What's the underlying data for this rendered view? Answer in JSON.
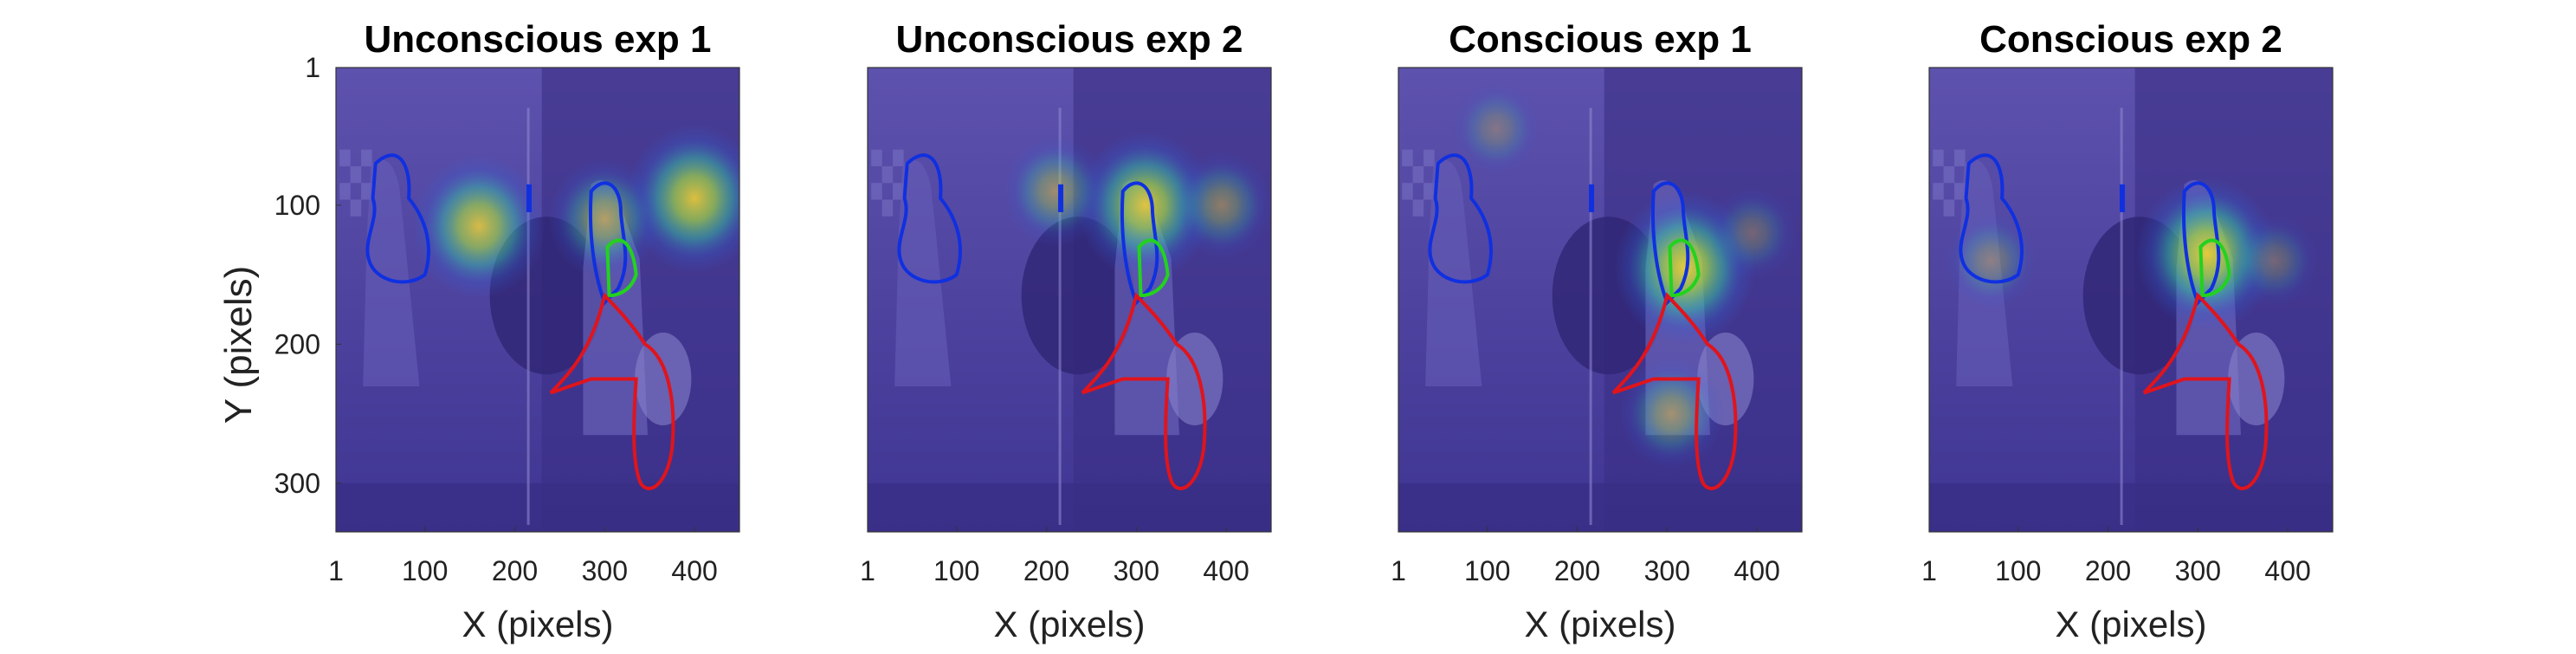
{
  "figure": {
    "ylabel": "Y (pixels)",
    "xlabel": "X (pixels)"
  },
  "colors": {
    "background_tint": "#4b3f9e",
    "heat_low": "#2b55d8",
    "heat_mid": "#36c7a0",
    "heat_high": "#f3d33a",
    "contour_blue": "#1030e0",
    "contour_red": "#e0141c",
    "contour_green": "#22d21e"
  },
  "chart_data": [
    {
      "type": "heatmap",
      "title": "Unconscious exp 1",
      "xlabel": "X (pixels)",
      "ylabel": "Y (pixels)",
      "xlim": [
        1,
        450
      ],
      "ylim": [
        1,
        335
      ],
      "xticks": [
        "1",
        "100",
        "200",
        "300",
        "400"
      ],
      "yticks": [
        "1",
        "100",
        "200",
        "300"
      ],
      "hotspots": [
        {
          "x": 160,
          "y": 115,
          "intensity": 0.85
        },
        {
          "x": 400,
          "y": 95,
          "intensity": 0.9
        },
        {
          "x": 300,
          "y": 110,
          "intensity": 0.6
        }
      ]
    },
    {
      "type": "heatmap",
      "title": "Unconscious exp 2",
      "xlabel": "X (pixels)",
      "ylabel": "",
      "xlim": [
        1,
        450
      ],
      "ylim": [
        1,
        335
      ],
      "xticks": [
        "1",
        "100",
        "200",
        "300",
        "400"
      ],
      "yticks": [],
      "hotspots": [
        {
          "x": 310,
          "y": 100,
          "intensity": 0.9
        },
        {
          "x": 210,
          "y": 90,
          "intensity": 0.5
        },
        {
          "x": 395,
          "y": 100,
          "intensity": 0.45
        }
      ]
    },
    {
      "type": "heatmap",
      "title": "Conscious exp 1",
      "xlabel": "X (pixels)",
      "ylabel": "",
      "xlim": [
        1,
        450
      ],
      "ylim": [
        1,
        335
      ],
      "xticks": [
        "1",
        "100",
        "200",
        "300",
        "400"
      ],
      "yticks": [],
      "hotspots": [
        {
          "x": 320,
          "y": 145,
          "intensity": 0.95
        },
        {
          "x": 305,
          "y": 250,
          "intensity": 0.5
        },
        {
          "x": 110,
          "y": 45,
          "intensity": 0.3
        },
        {
          "x": 395,
          "y": 120,
          "intensity": 0.3
        }
      ]
    },
    {
      "type": "heatmap",
      "title": "Conscious exp 2",
      "xlabel": "X (pixels)",
      "ylabel": "",
      "xlim": [
        1,
        450
      ],
      "ylim": [
        1,
        335
      ],
      "xticks": [
        "1",
        "100",
        "200",
        "300",
        "400"
      ],
      "yticks": [],
      "hotspots": [
        {
          "x": 310,
          "y": 135,
          "intensity": 0.95
        },
        {
          "x": 70,
          "y": 140,
          "intensity": 0.35
        },
        {
          "x": 385,
          "y": 140,
          "intensity": 0.3
        }
      ]
    }
  ]
}
